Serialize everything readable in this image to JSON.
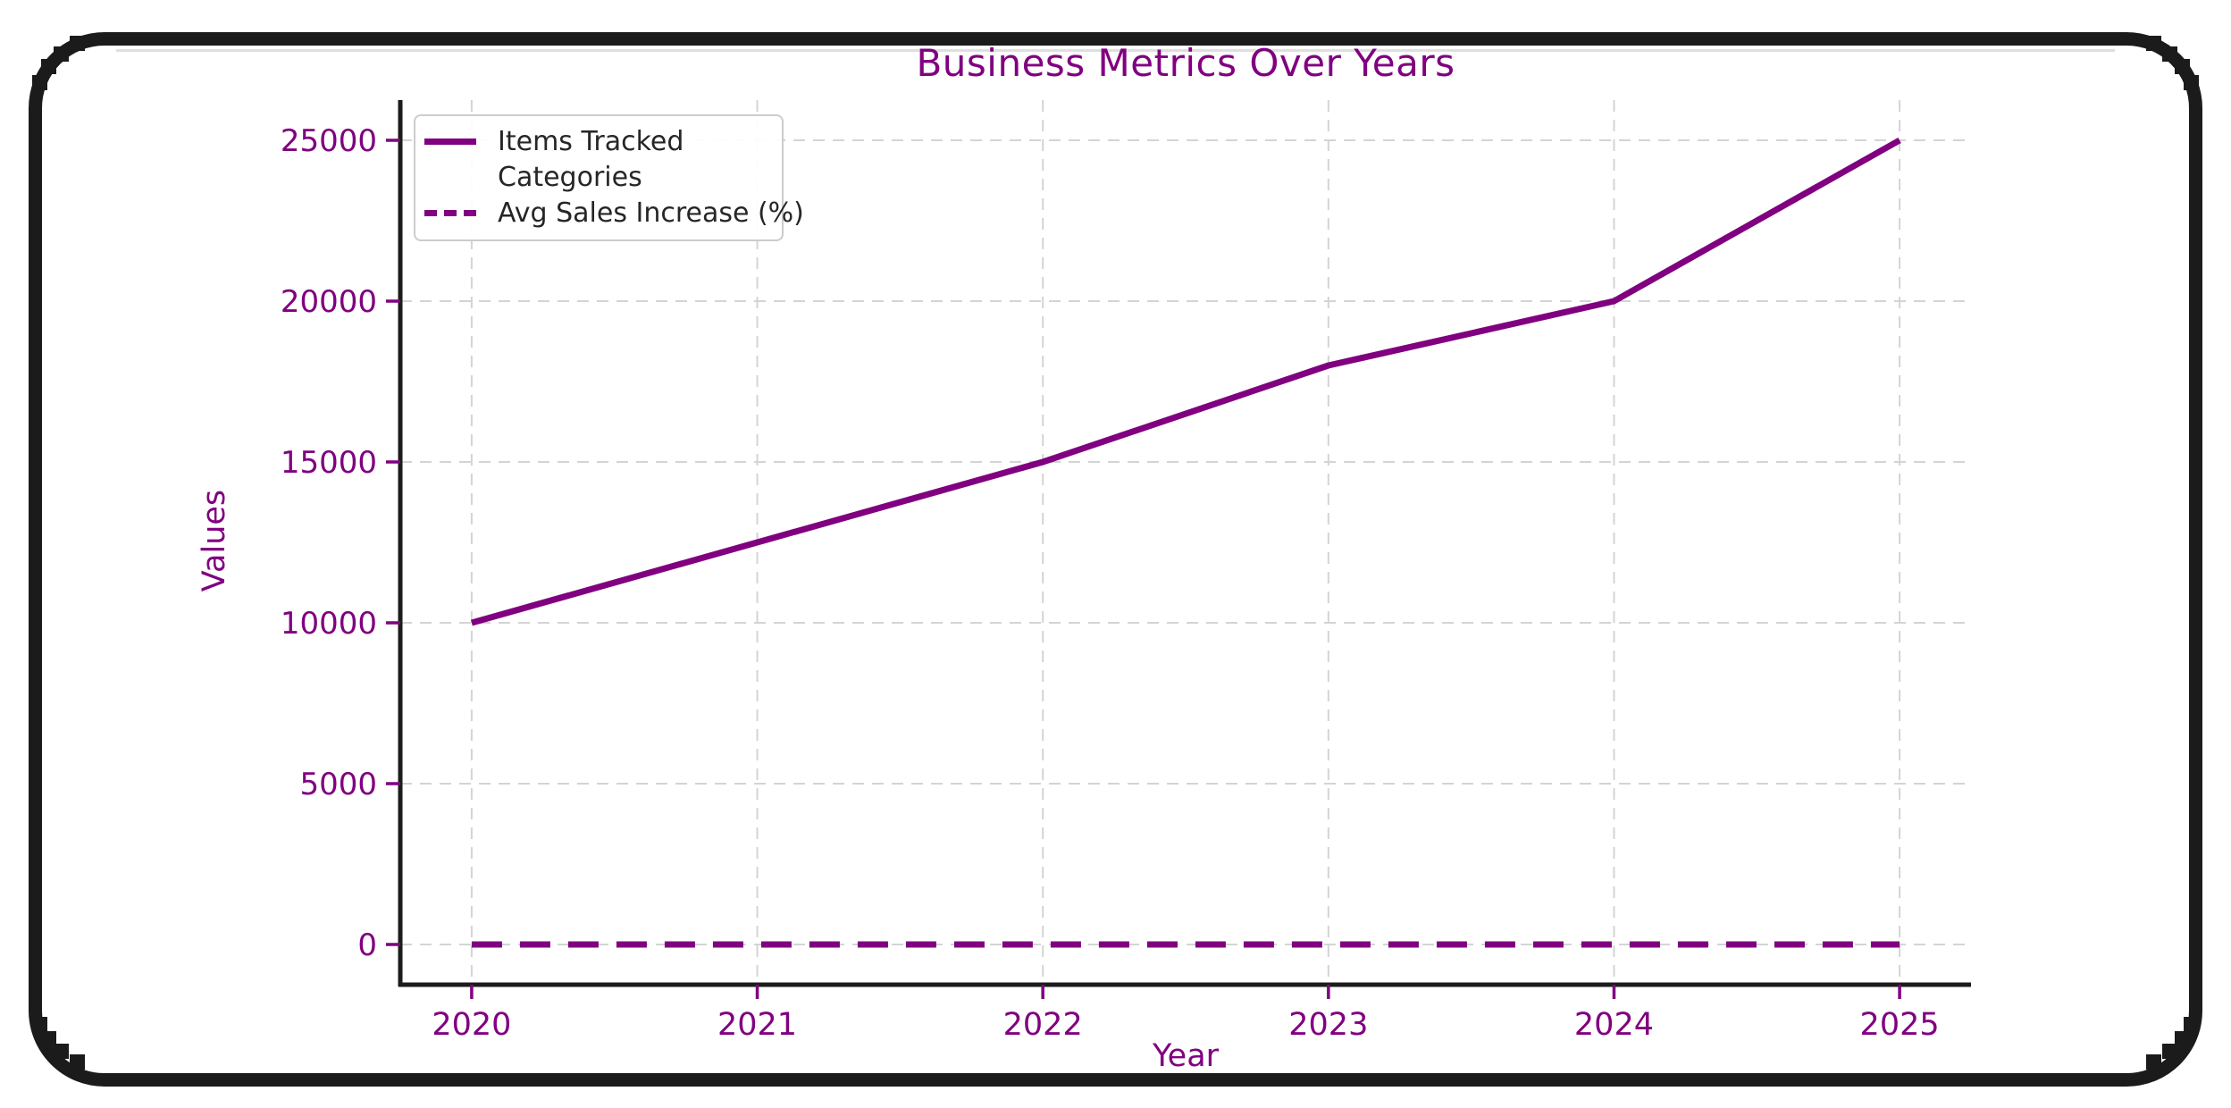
{
  "figure": {
    "title": "Business Metrics Over Years",
    "xlabel": "Year",
    "ylabel": "Values"
  },
  "legend": {
    "position": "upper-left",
    "items": [
      {
        "label": "Items Tracked",
        "swatch": "solid"
      },
      {
        "label": "Categories",
        "swatch": "none"
      },
      {
        "label": "Avg Sales Increase (%)",
        "swatch": "dashed"
      }
    ]
  },
  "colors": {
    "accent_purple": "#800080",
    "axis_spine": "#1c1c1c",
    "gridline": "#d4d4d4",
    "legend_text": "#262626",
    "legend_border": "#cccccc",
    "frame_black": "#1b1b1b",
    "background": "#ffffff"
  },
  "chart_data": {
    "type": "line",
    "title": "Business Metrics Over Years",
    "xlabel": "Year",
    "ylabel": "Values",
    "x": [
      2020,
      2021,
      2022,
      2023,
      2024,
      2025
    ],
    "xtick_labels": [
      "2020",
      "2021",
      "2022",
      "2023",
      "2024",
      "2025"
    ],
    "ytick_labels": [
      "0",
      "5000",
      "10000",
      "15000",
      "20000",
      "25000"
    ],
    "ytick_values": [
      0,
      5000,
      10000,
      15000,
      20000,
      25000
    ],
    "xlim": [
      2019.75,
      2025.25
    ],
    "ylim": [
      -1250,
      26250
    ],
    "grid": "dashed-lightgray",
    "legend_position": "upper-left",
    "series": [
      {
        "name": "Items Tracked",
        "line_style": "solid",
        "color": "#800080",
        "values": [
          10000,
          12500,
          15000,
          18000,
          20000,
          25000
        ]
      },
      {
        "name": "Categories",
        "line_style": "none",
        "color": "#ffffff",
        "values": null,
        "note": "legend swatch is blank; line not visible on the plot"
      },
      {
        "name": "Avg Sales Increase (%)",
        "line_style": "dashed",
        "color": "#800080",
        "values": [
          0,
          0,
          0,
          0,
          0,
          0
        ],
        "note": "drawn flat, indistinguishable from 0 at this axis scale"
      }
    ]
  }
}
